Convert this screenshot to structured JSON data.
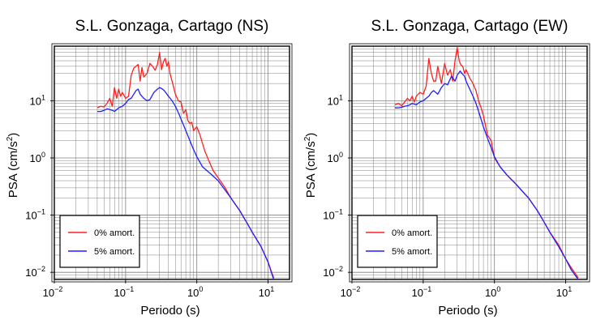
{
  "colors": {
    "damping_0": "#ff1f1f",
    "damping_5": "#1f1fff",
    "grid": "#808080",
    "frame": "#000000"
  },
  "chart_data": [
    {
      "type": "line",
      "title": "S.L. Gonzaga, Cartago (NS)",
      "xlabel": "Periodo (s)",
      "ylabel_main": "PSA (cm/s",
      "ylabel_sup": "2",
      "ylabel_end": ")",
      "xscale": "log",
      "yscale": "log",
      "xlim": [
        0.01,
        20
      ],
      "ylim": [
        0.0075,
        90
      ],
      "grid": true,
      "legend_position": "bottom-left",
      "xticks": [
        {
          "value": 0.01,
          "base": "10",
          "exp": "−2"
        },
        {
          "value": 0.1,
          "base": "10",
          "exp": "−1"
        },
        {
          "value": 1,
          "base": "10",
          "exp": "0"
        },
        {
          "value": 10,
          "base": "10",
          "exp": "1"
        }
      ],
      "yticks": [
        {
          "value": 0.01,
          "base": "10",
          "exp": "−2"
        },
        {
          "value": 0.1,
          "base": "10",
          "exp": "−1"
        },
        {
          "value": 1,
          "base": "10",
          "exp": "0"
        },
        {
          "value": 10,
          "base": "10",
          "exp": "1"
        }
      ],
      "series": [
        {
          "name": "0% amort.",
          "x": [
            0.04,
            0.045,
            0.05,
            0.055,
            0.06,
            0.065,
            0.07,
            0.075,
            0.08,
            0.085,
            0.09,
            0.1,
            0.11,
            0.12,
            0.13,
            0.14,
            0.15,
            0.16,
            0.17,
            0.18,
            0.2,
            0.22,
            0.24,
            0.26,
            0.28,
            0.3,
            0.32,
            0.34,
            0.36,
            0.38,
            0.4,
            0.42,
            0.45,
            0.5,
            0.55,
            0.6,
            0.65,
            0.7,
            0.75,
            0.8,
            0.85,
            0.9,
            1.0,
            1.1,
            1.2,
            1.3,
            1.5,
            1.7,
            2.0,
            2.5,
            3.0,
            4.0,
            5.0,
            6.0,
            8.0,
            10.0,
            12.0
          ],
          "y": [
            7.5,
            8,
            7.8,
            9,
            11,
            8,
            17,
            11,
            16,
            12,
            14,
            11,
            12,
            28,
            37,
            40,
            43,
            22,
            38,
            26,
            30,
            45,
            40,
            34,
            43,
            70,
            35,
            48,
            55,
            40,
            48,
            30,
            22,
            13,
            10,
            9.5,
            6,
            7,
            4.5,
            4,
            4.2,
            3,
            3.5,
            2.6,
            1.8,
            1.3,
            0.85,
            0.6,
            0.45,
            0.3,
            0.2,
            0.12,
            0.075,
            0.05,
            0.028,
            0.015,
            0.008
          ]
        },
        {
          "name": "5% amort.",
          "x": [
            0.04,
            0.045,
            0.05,
            0.055,
            0.06,
            0.065,
            0.07,
            0.08,
            0.09,
            0.1,
            0.11,
            0.12,
            0.13,
            0.14,
            0.15,
            0.16,
            0.18,
            0.2,
            0.22,
            0.25,
            0.28,
            0.3,
            0.33,
            0.35,
            0.38,
            0.4,
            0.45,
            0.5,
            0.55,
            0.6,
            0.7,
            0.8,
            0.9,
            1.0,
            1.2,
            1.5,
            2.0,
            3.0,
            4.0,
            5.0,
            6.0,
            8.0,
            10.0,
            12.0
          ],
          "y": [
            6.5,
            6.5,
            6.8,
            7.2,
            7.0,
            6.8,
            6.5,
            7.5,
            8,
            9,
            10.5,
            11,
            13,
            15,
            16,
            13,
            11,
            10,
            10.5,
            14,
            16,
            17,
            16,
            15,
            13,
            12,
            10,
            8,
            6.2,
            4.8,
            3,
            2,
            1.4,
            1.05,
            0.7,
            0.55,
            0.4,
            0.2,
            0.12,
            0.075,
            0.05,
            0.028,
            0.015,
            0.0075
          ]
        }
      ]
    },
    {
      "type": "line",
      "title": "S.L. Gonzaga, Cartago (EW)",
      "xlabel": "Periodo (s)",
      "ylabel_main": "PSA (cm/s",
      "ylabel_sup": "2",
      "ylabel_end": ")",
      "xscale": "log",
      "yscale": "log",
      "xlim": [
        0.01,
        20
      ],
      "ylim": [
        0.0075,
        90
      ],
      "grid": true,
      "legend_position": "bottom-left",
      "xticks": [
        {
          "value": 0.01,
          "base": "10",
          "exp": "−2"
        },
        {
          "value": 0.1,
          "base": "10",
          "exp": "−1"
        },
        {
          "value": 1,
          "base": "10",
          "exp": "0"
        },
        {
          "value": 10,
          "base": "10",
          "exp": "1"
        }
      ],
      "yticks": [
        {
          "value": 0.01,
          "base": "10",
          "exp": "−2"
        },
        {
          "value": 0.1,
          "base": "10",
          "exp": "−1"
        },
        {
          "value": 1,
          "base": "10",
          "exp": "0"
        },
        {
          "value": 10,
          "base": "10",
          "exp": "1"
        }
      ],
      "series": [
        {
          "name": "0% amort.",
          "x": [
            0.04,
            0.045,
            0.05,
            0.055,
            0.06,
            0.065,
            0.07,
            0.075,
            0.08,
            0.09,
            0.1,
            0.11,
            0.12,
            0.13,
            0.14,
            0.15,
            0.16,
            0.18,
            0.2,
            0.22,
            0.24,
            0.26,
            0.28,
            0.3,
            0.32,
            0.34,
            0.36,
            0.38,
            0.4,
            0.45,
            0.5,
            0.55,
            0.6,
            0.65,
            0.7,
            0.8,
            0.9,
            1.0,
            1.2,
            1.5,
            2.0,
            3.0,
            4.0,
            5.0,
            6.0,
            8.0,
            10.0,
            12.0,
            15.0
          ],
          "y": [
            8.5,
            9,
            8.2,
            9.5,
            11,
            10,
            12,
            9.5,
            12,
            14,
            13,
            18,
            55,
            30,
            22,
            22,
            40,
            20,
            45,
            28,
            35,
            22,
            50,
            85,
            50,
            42,
            40,
            30,
            35,
            25,
            20,
            15,
            10,
            7.5,
            5.5,
            2.5,
            2.0,
            1.0,
            0.7,
            0.5,
            0.35,
            0.2,
            0.12,
            0.075,
            0.05,
            0.03,
            0.017,
            0.012,
            0.008
          ]
        },
        {
          "name": "5% amort.",
          "x": [
            0.04,
            0.045,
            0.05,
            0.055,
            0.06,
            0.065,
            0.07,
            0.08,
            0.09,
            0.1,
            0.11,
            0.12,
            0.13,
            0.14,
            0.15,
            0.16,
            0.18,
            0.2,
            0.22,
            0.25,
            0.28,
            0.3,
            0.33,
            0.35,
            0.38,
            0.4,
            0.45,
            0.5,
            0.55,
            0.6,
            0.7,
            0.8,
            0.9,
            1.0,
            1.2,
            1.5,
            2.0,
            3.0,
            4.0,
            5.0,
            6.0,
            8.0,
            10.0,
            12.0,
            15.0
          ],
          "y": [
            7.5,
            7.5,
            7.7,
            8,
            8.2,
            8.5,
            9,
            8.5,
            9.5,
            10,
            11,
            12,
            14,
            15,
            14,
            13,
            17,
            20,
            19,
            27,
            22,
            28,
            33,
            30,
            27,
            22,
            16,
            12,
            9,
            6.5,
            3.5,
            2.2,
            1.5,
            1.05,
            0.7,
            0.5,
            0.35,
            0.2,
            0.12,
            0.075,
            0.05,
            0.028,
            0.017,
            0.011,
            0.0075
          ]
        }
      ]
    }
  ]
}
